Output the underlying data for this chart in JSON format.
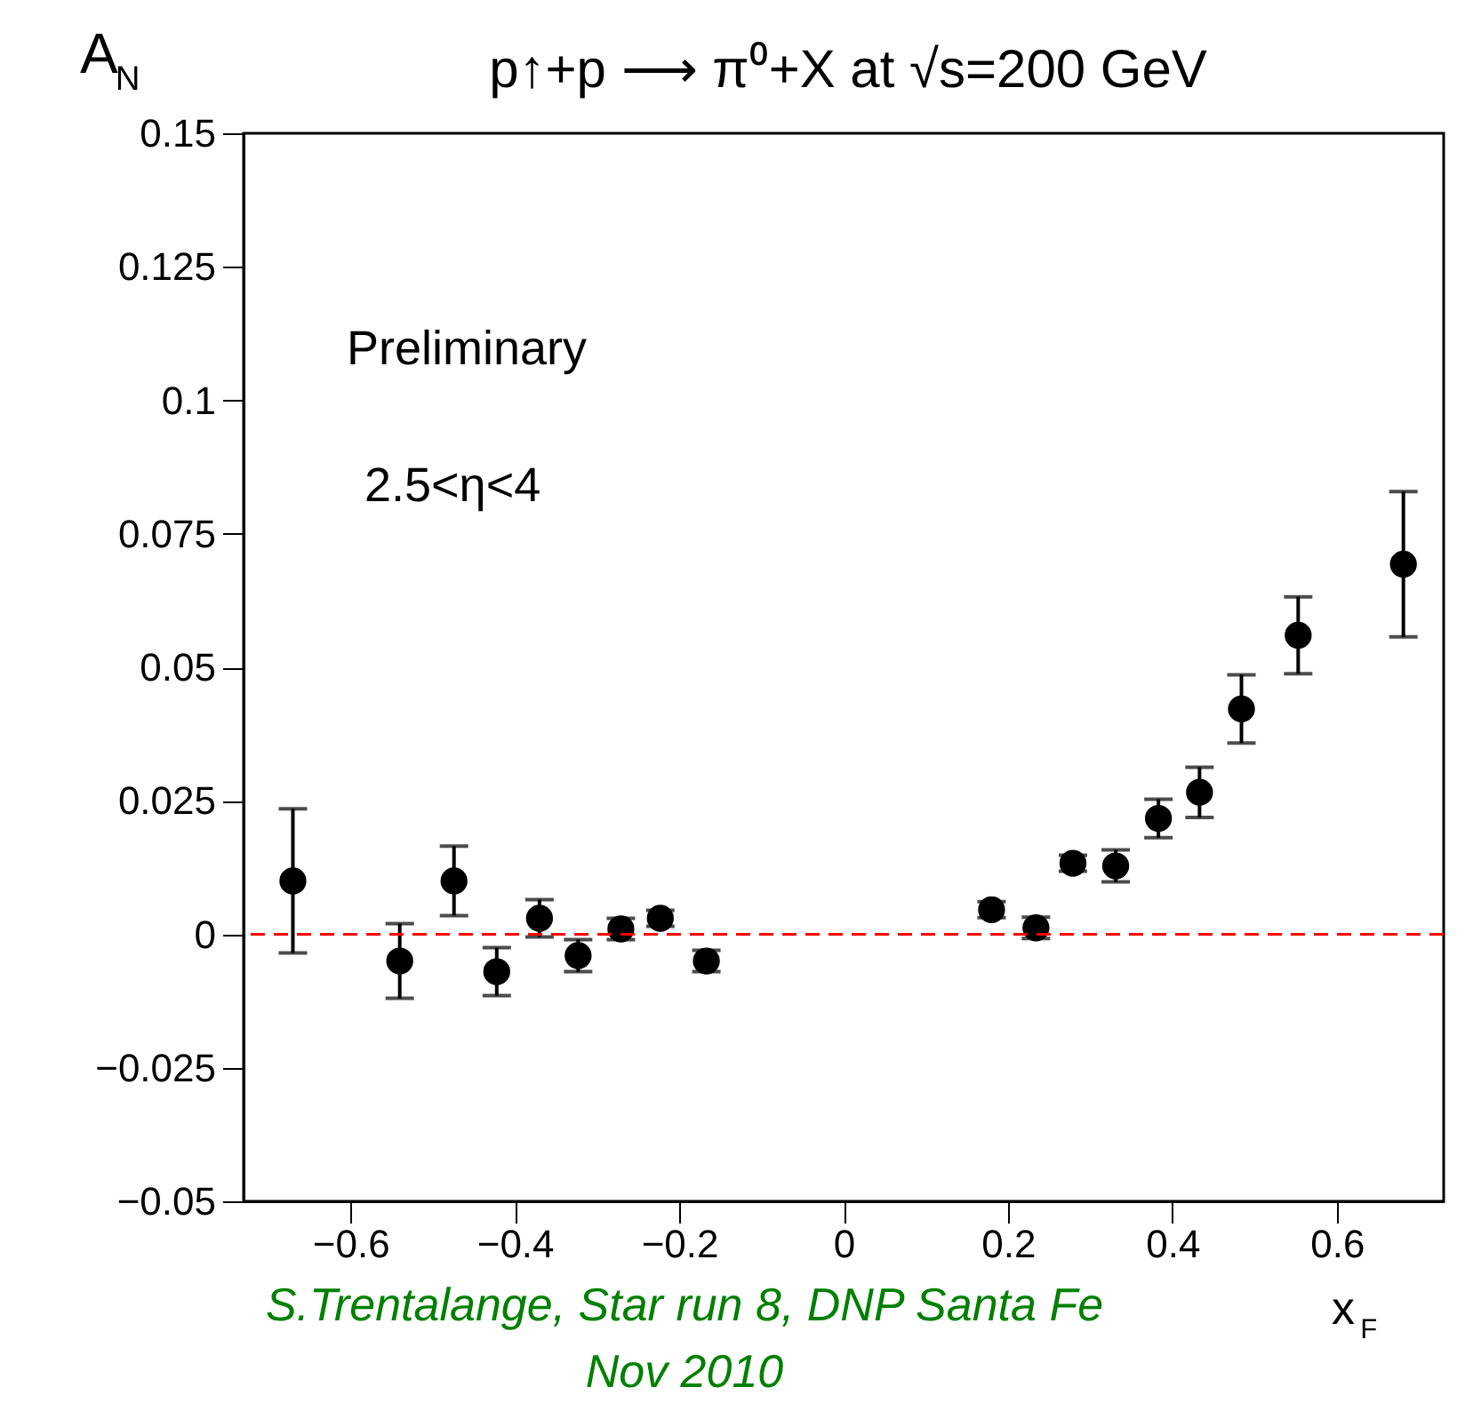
{
  "chart_data": {
    "type": "scatter",
    "title": "p↑+p ⟶ π⁰+X at √s=200 GeV",
    "xlabel": "x$_{F}$",
    "ylabel": "A$_{N}$",
    "x": [
      -0.67,
      -0.54,
      -0.474,
      -0.422,
      -0.37,
      -0.323,
      -0.271,
      -0.223,
      -0.167,
      0.18,
      0.234,
      0.279,
      0.331,
      0.383,
      0.433,
      0.484,
      0.553,
      0.681
    ],
    "series": [
      {
        "color": "#000000",
        "values": [
          0.01,
          -0.005,
          0.01,
          -0.007,
          0.003,
          -0.004,
          0.001,
          0.003,
          -0.005,
          0.0046,
          0.0012,
          0.0133,
          0.0128,
          0.0217,
          0.0266,
          0.0422,
          0.056,
          0.0693
        ],
        "errors": [
          0.0135,
          0.007,
          0.0065,
          0.0045,
          0.0035,
          0.003,
          0.002,
          0.0015,
          0.002,
          0.0015,
          0.002,
          0.0015,
          0.003,
          0.0036,
          0.0047,
          0.0064,
          0.0072,
          0.0136
        ]
      }
    ],
    "marker": "circle",
    "xlim": [
      -0.73,
      0.73
    ],
    "xticks": [
      {
        "value": -0.6,
        "label": "−0.6"
      },
      {
        "value": -0.4,
        "label": "−0.4"
      },
      {
        "value": -0.2,
        "label": "−0.2"
      },
      0,
      0.2,
      0.4,
      0.6
    ],
    "ylim": [
      -0.05,
      0.15
    ],
    "yticks": [
      {
        "value": -0.05,
        "label": "−0.05"
      },
      {
        "value": -0.025,
        "label": "−0.025"
      },
      0,
      0.025,
      0.05,
      0.075,
      0.1,
      0.125,
      0.15
    ],
    "ref_lines": [
      {
        "axis": "y",
        "value": 0,
        "color": "#ff0000",
        "line_style": "dashed"
      }
    ],
    "grid": false,
    "annotations": [
      "Preliminary",
      "2.5<η<4",
      "S.Trentalange, Star run 8, DNP Santa Fe\nNov  2010"
    ]
  }
}
